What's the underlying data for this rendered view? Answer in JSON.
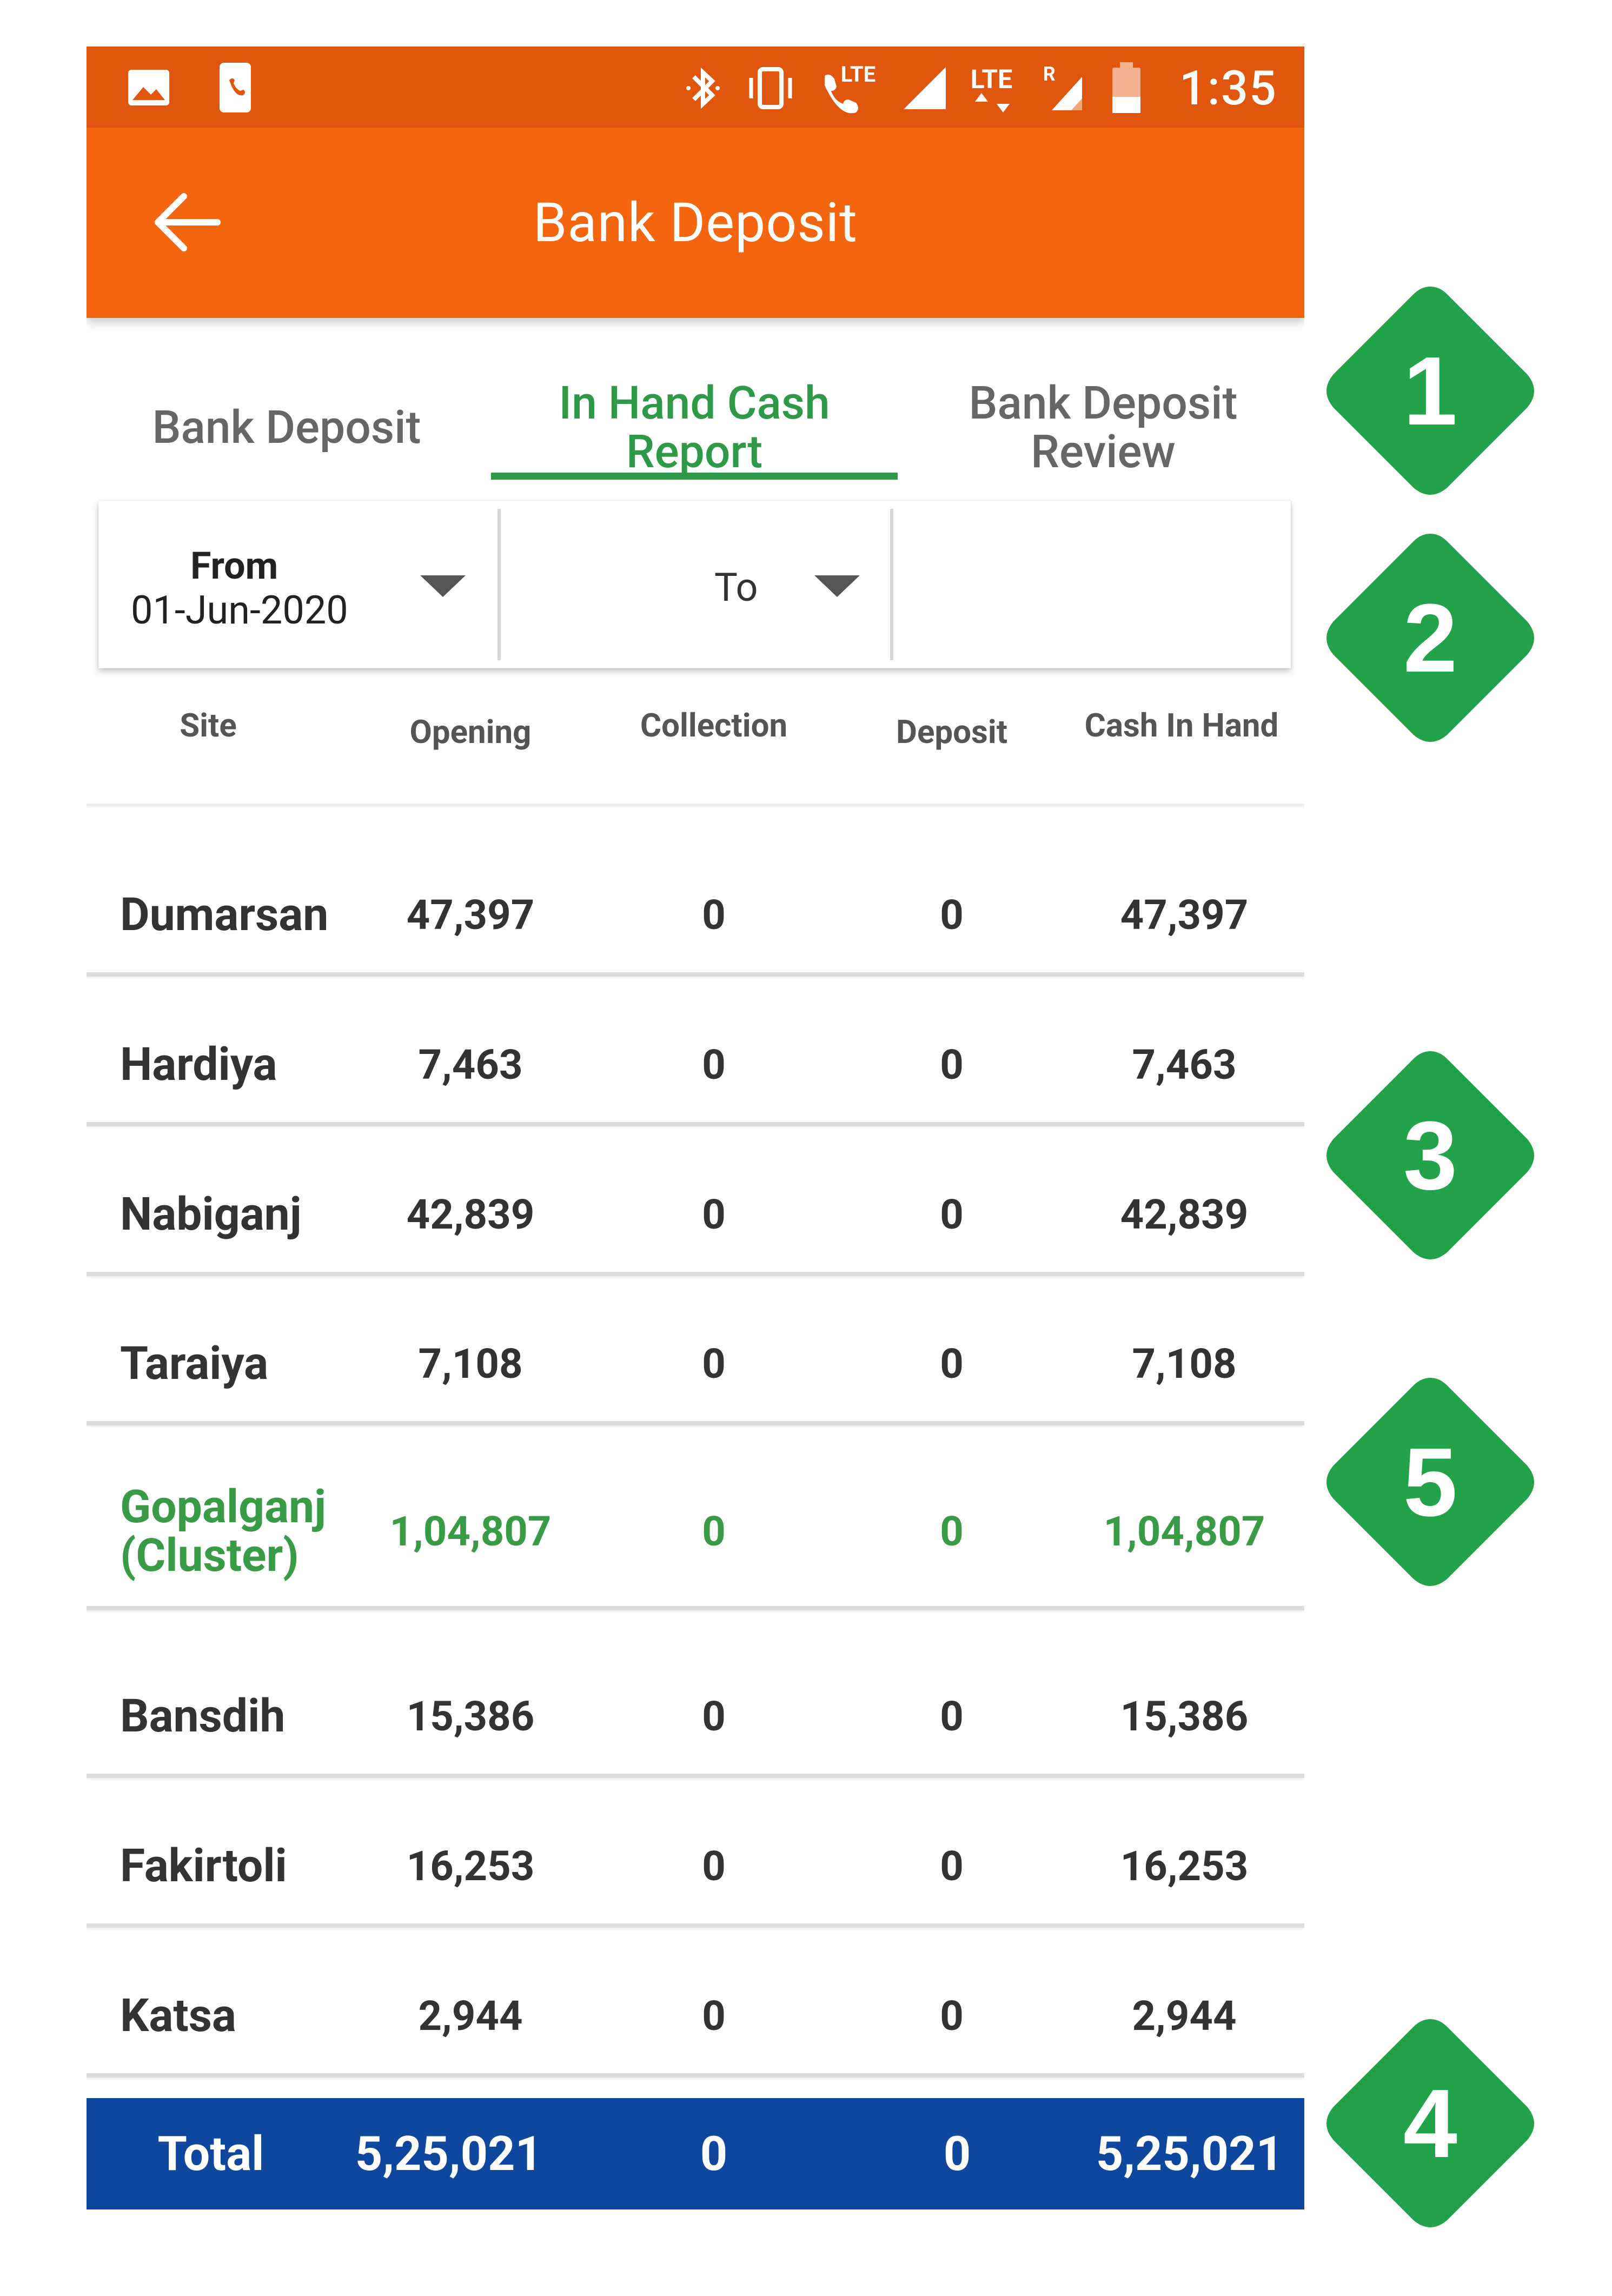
{
  "status_bar": {
    "time": "1:35",
    "icons": [
      "image-icon",
      "phone-badge-icon",
      "bluetooth-icon",
      "vibrate-icon",
      "volte-call-icon",
      "signal-icon",
      "lte-data-icon",
      "roaming-signal-icon",
      "battery-low-icon"
    ],
    "lte_label": "LTE",
    "lte_data_label": "LTE",
    "roaming_label": "R"
  },
  "app_bar": {
    "title": "Bank Deposit",
    "back_icon": "arrow-left-icon"
  },
  "tabs": [
    {
      "label": "Bank Deposit",
      "active": false
    },
    {
      "label": "In Hand Cash Report",
      "active": true
    },
    {
      "label": "Bank Deposit Review",
      "active": false
    }
  ],
  "filter": {
    "from_label": "From",
    "from_value": "01-Jun-2020",
    "to_label": "To",
    "dropdown_icon": "caret-down-icon"
  },
  "table": {
    "columns": [
      "Site",
      "Opening",
      "Collection",
      "Deposit",
      "Cash In Hand"
    ],
    "rows": [
      {
        "site": "Dumarsan",
        "opening": "47,397",
        "collection": "0",
        "deposit": "0",
        "cash_in_hand": "47,397"
      },
      {
        "site": "Hardiya",
        "opening": "7,463",
        "collection": "0",
        "deposit": "0",
        "cash_in_hand": "7,463"
      },
      {
        "site": "Nabiganj",
        "opening": "42,839",
        "collection": "0",
        "deposit": "0",
        "cash_in_hand": "42,839"
      },
      {
        "site": "Taraiya",
        "opening": "7,108",
        "collection": "0",
        "deposit": "0",
        "cash_in_hand": "7,108"
      },
      {
        "site": "Gopalganj (Cluster)",
        "opening": "1,04,807",
        "collection": "0",
        "deposit": "0",
        "cash_in_hand": "1,04,807"
      },
      {
        "site": "Bansdih",
        "opening": "15,386",
        "collection": "0",
        "deposit": "0",
        "cash_in_hand": "15,386"
      },
      {
        "site": "Fakirtoli",
        "opening": "16,253",
        "collection": "0",
        "deposit": "0",
        "cash_in_hand": "16,253"
      },
      {
        "site": "Katsa",
        "opening": "2,944",
        "collection": "0",
        "deposit": "0",
        "cash_in_hand": "2,944"
      }
    ],
    "total": {
      "label": "Total",
      "opening": "5,25,021",
      "collection": "0",
      "deposit": "0",
      "cash_in_hand": "5,25,021"
    }
  },
  "markers": [
    "1",
    "2",
    "3",
    "5",
    "4"
  ],
  "colors": {
    "status_bar": "#e0560c",
    "app_bar": "#f46510",
    "accent_green": "#2e9a48",
    "total_bar": "#0f479e",
    "marker_green": "#23a349"
  }
}
